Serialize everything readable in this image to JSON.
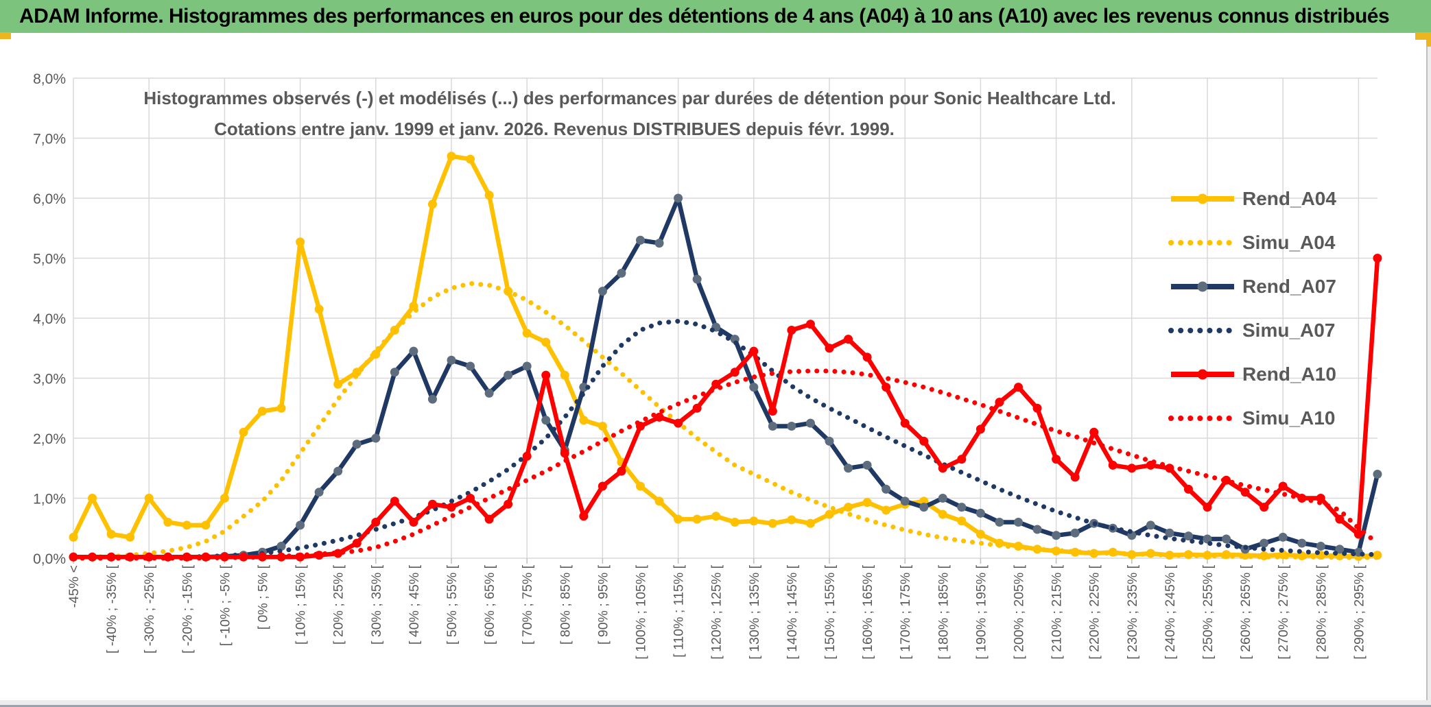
{
  "banner": {
    "title": "ADAM Informe. Histogrammes des performances en euros pour des détentions de 4 ans (A04) à 10 ans (A10) avec les revenus connus distribués"
  },
  "chart_data": {
    "type": "line",
    "title_line1": "Histogrammes observés (-) et modélisés (...) des performances par durées de détention pour Sonic Healthcare Ltd.",
    "title_line2": "Cotations entre janv. 1999 et janv. 2026. Revenus DISTRIBUES depuis févr. 1999.",
    "ylabel": "",
    "xlabel": "",
    "ylim": [
      0,
      8
    ],
    "grid": true,
    "legend_position": "right",
    "y_ticks": [
      "8,0%",
      "7,0%",
      "6,0%",
      "5,0%",
      "4,0%",
      "3,0%",
      "2,0%",
      "1,0%",
      "0,0%"
    ],
    "categories": [
      "-45% <",
      "",
      "[ -40% ; -35% [",
      "",
      "[ -30% ; -25% [",
      "",
      "[ -20% ; -15% [",
      "",
      "[ -10% ; -5% [",
      "",
      "[ 0% ; 5% [",
      "",
      "[ 10% ; 15% [",
      "",
      "[ 20% ; 25% [",
      "",
      "[ 30% ; 35% [",
      "",
      "[ 40% ; 45% [",
      "",
      "[ 50% ; 55% [",
      "",
      "[ 60% ; 65% [",
      "",
      "[ 70% ; 75% [",
      "",
      "[ 80% ; 85% [",
      "",
      "[ 90% ; 95% [",
      "",
      "[ 100% ; 105% [",
      "",
      "[ 110% ; 115% [",
      "",
      "[ 120% ; 125% [",
      "",
      "[ 130% ; 135% [",
      "",
      "[ 140% ; 145% [",
      "",
      "[ 150% ; 155% [",
      "",
      "[ 160% ; 165% [",
      "",
      "[ 170% ; 175% [",
      "",
      "[ 180% ; 185% [",
      "",
      "[ 190% ; 195% [",
      "",
      "[ 200% ; 205% [",
      "",
      "[ 210% ; 215% [",
      "",
      "[ 220% ; 225% [",
      "",
      "[ 230% ; 235% [",
      "",
      "[ 240% ; 245% [",
      "",
      "[ 250% ; 255% [",
      "",
      "[ 260% ; 265% [",
      "",
      "[ 270% ; 275% [",
      "",
      "[ 280% ; 285% [",
      "",
      "[ 290% ; 295% [",
      ""
    ],
    "series": [
      {
        "name": "Rend_A04",
        "style": "solid",
        "color": "#FFC000",
        "marker_color": "#FFC000",
        "values": [
          0.35,
          1.0,
          0.4,
          0.35,
          1.0,
          0.6,
          0.55,
          0.55,
          1.0,
          2.1,
          2.45,
          2.5,
          5.27,
          4.15,
          2.9,
          3.1,
          3.4,
          3.8,
          4.2,
          5.9,
          6.7,
          6.65,
          6.05,
          4.45,
          3.75,
          3.6,
          3.05,
          2.3,
          2.2,
          1.6,
          1.2,
          0.95,
          0.65,
          0.65,
          0.7,
          0.6,
          0.62,
          0.58,
          0.64,
          0.58,
          0.73,
          0.85,
          0.93,
          0.8,
          0.9,
          0.95,
          0.73,
          0.62,
          0.4,
          0.25,
          0.2,
          0.15,
          0.12,
          0.1,
          0.08,
          0.1,
          0.06,
          0.08,
          0.05,
          0.06,
          0.05,
          0.06,
          0.05,
          0.04,
          0.06,
          0.04,
          0.05,
          0.04,
          0.03,
          0.05
        ]
      },
      {
        "name": "Simu_A04",
        "style": "dotted",
        "color": "#FFC000",
        "marker_color": "#FFC000",
        "values": [
          0.01,
          0.02,
          0.03,
          0.05,
          0.08,
          0.12,
          0.18,
          0.28,
          0.45,
          0.7,
          0.95,
          1.3,
          1.75,
          2.2,
          2.65,
          3.05,
          3.45,
          3.8,
          4.1,
          4.35,
          4.5,
          4.58,
          4.55,
          4.45,
          4.3,
          4.1,
          3.88,
          3.62,
          3.35,
          3.08,
          2.8,
          2.52,
          2.26,
          2.0,
          1.77,
          1.55,
          1.4,
          1.25,
          1.1,
          0.97,
          0.85,
          0.74,
          0.64,
          0.55,
          0.47,
          0.4,
          0.34,
          0.29,
          0.25,
          0.21,
          0.18,
          0.15,
          0.13,
          0.11,
          0.09,
          0.08,
          0.07,
          0.06,
          0.05,
          0.04,
          0.04,
          0.03,
          0.03,
          0.02,
          0.02,
          0.02,
          0.02,
          0.01,
          0.01,
          0.01
        ]
      },
      {
        "name": "Rend_A07",
        "style": "solid",
        "color": "#1F3864",
        "marker_color": "#5d6d7e",
        "values": [
          0.02,
          0.02,
          0.02,
          0.02,
          0.02,
          0.02,
          0.02,
          0.02,
          0.03,
          0.05,
          0.1,
          0.2,
          0.55,
          1.1,
          1.45,
          1.9,
          2.0,
          3.1,
          3.45,
          2.65,
          3.3,
          3.2,
          2.75,
          3.05,
          3.2,
          2.3,
          1.8,
          2.85,
          4.45,
          4.75,
          5.3,
          5.25,
          6.0,
          4.65,
          3.85,
          3.65,
          2.85,
          2.2,
          2.2,
          2.25,
          1.95,
          1.5,
          1.55,
          1.15,
          0.95,
          0.85,
          1.0,
          0.85,
          0.75,
          0.6,
          0.6,
          0.48,
          0.38,
          0.42,
          0.58,
          0.5,
          0.38,
          0.55,
          0.42,
          0.37,
          0.32,
          0.32,
          0.15,
          0.25,
          0.35,
          0.25,
          0.2,
          0.15,
          0.1,
          1.4
        ]
      },
      {
        "name": "Simu_A07",
        "style": "dotted",
        "color": "#1F3864",
        "marker_color": "#1F3864",
        "values": [
          0.0,
          0.0,
          0.0,
          0.0,
          0.01,
          0.01,
          0.02,
          0.03,
          0.04,
          0.06,
          0.08,
          0.12,
          0.17,
          0.23,
          0.3,
          0.38,
          0.48,
          0.58,
          0.68,
          0.8,
          0.95,
          1.1,
          1.28,
          1.48,
          1.72,
          2.0,
          2.35,
          2.75,
          3.2,
          3.55,
          3.8,
          3.92,
          3.95,
          3.9,
          3.78,
          3.6,
          3.38,
          3.12,
          2.87,
          2.67,
          2.5,
          2.34,
          2.18,
          2.02,
          1.87,
          1.72,
          1.57,
          1.43,
          1.29,
          1.15,
          1.02,
          0.9,
          0.78,
          0.68,
          0.58,
          0.5,
          0.44,
          0.38,
          0.33,
          0.29,
          0.25,
          0.21,
          0.18,
          0.15,
          0.13,
          0.11,
          0.09,
          0.08,
          0.07,
          0.06
        ]
      },
      {
        "name": "Rend_A10",
        "style": "solid",
        "color": "#FE0000",
        "marker_color": "#FE0000",
        "values": [
          0.02,
          0.02,
          0.02,
          0.02,
          0.02,
          0.02,
          0.02,
          0.02,
          0.02,
          0.02,
          0.02,
          0.02,
          0.02,
          0.05,
          0.08,
          0.25,
          0.6,
          0.95,
          0.6,
          0.9,
          0.85,
          1.0,
          0.65,
          0.9,
          1.7,
          3.05,
          1.75,
          0.7,
          1.2,
          1.45,
          2.2,
          2.35,
          2.25,
          2.5,
          2.9,
          3.1,
          3.45,
          2.45,
          3.8,
          3.9,
          3.5,
          3.65,
          3.35,
          2.85,
          2.25,
          1.95,
          1.5,
          1.65,
          2.15,
          2.6,
          2.85,
          2.5,
          1.65,
          1.35,
          2.1,
          1.55,
          1.5,
          1.55,
          1.5,
          1.15,
          0.85,
          1.3,
          1.1,
          0.85,
          1.2,
          1.0,
          1.0,
          0.65,
          0.4,
          5.0
        ]
      },
      {
        "name": "Simu_A10",
        "style": "dotted",
        "color": "#FE0000",
        "marker_color": "#FE0000",
        "values": [
          0.0,
          0.0,
          0.0,
          0.0,
          0.0,
          0.0,
          0.0,
          0.0,
          0.01,
          0.01,
          0.02,
          0.03,
          0.05,
          0.07,
          0.09,
          0.12,
          0.18,
          0.28,
          0.4,
          0.55,
          0.7,
          0.85,
          1.0,
          1.15,
          1.3,
          1.45,
          1.62,
          1.78,
          1.95,
          2.12,
          2.28,
          2.43,
          2.57,
          2.7,
          2.82,
          2.93,
          3.02,
          3.08,
          3.11,
          3.12,
          3.12,
          3.1,
          3.06,
          3.0,
          2.93,
          2.85,
          2.76,
          2.66,
          2.56,
          2.45,
          2.34,
          2.23,
          2.12,
          2.03,
          1.92,
          1.82,
          1.72,
          1.62,
          1.53,
          1.45,
          1.37,
          1.29,
          1.21,
          1.14,
          1.07,
          1.0,
          0.92,
          0.8,
          0.5,
          0.25
        ]
      }
    ]
  },
  "colors": {
    "banner_bg": "#7cc47e",
    "accent_gold": "#edb51f",
    "text_gray": "#595959",
    "gridline": "#d9d9d9",
    "series_yellow": "#FFC000",
    "series_navy": "#1F3864",
    "series_red": "#FE0000"
  }
}
